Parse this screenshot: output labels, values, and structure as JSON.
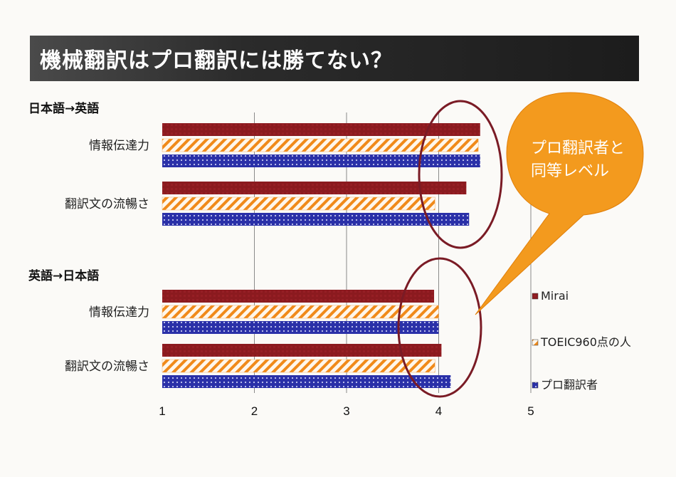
{
  "title": "機械翻訳はプロ翻訳には勝てない？",
  "callout": [
    "プロ翻訳者と",
    "同等レベル"
  ],
  "colors": {
    "mirai": "#8b1a1f",
    "toeic": "#f08a1a",
    "pro": "#2a30a8",
    "callout": "#f39a1e",
    "ellipse": "#7a1b25"
  },
  "chart_data": {
    "type": "bar",
    "orientation": "horizontal",
    "xlim": [
      1,
      5
    ],
    "xticks": [
      1,
      2,
      3,
      4,
      5
    ],
    "grid": true,
    "legend_position": "right",
    "series": [
      {
        "name": "Mirai",
        "pattern": "solid"
      },
      {
        "name": "TOEIC960点の人",
        "pattern": "hatched"
      },
      {
        "name": "プロ翻訳者",
        "pattern": "dotted"
      }
    ],
    "groups": [
      {
        "label": "日本語→英語",
        "categories": [
          {
            "label": "情報伝達力",
            "values": [
              4.45,
              4.43,
              4.45
            ]
          },
          {
            "label": "翻訳文の流暢さ",
            "values": [
              4.3,
              3.96,
              4.33
            ]
          }
        ]
      },
      {
        "label": "英語→日本語",
        "categories": [
          {
            "label": "情報伝達力",
            "values": [
              3.95,
              4.0,
              4.0
            ]
          },
          {
            "label": "翻訳文の流暢さ",
            "values": [
              4.03,
              3.96,
              4.13
            ]
          }
        ]
      }
    ]
  }
}
